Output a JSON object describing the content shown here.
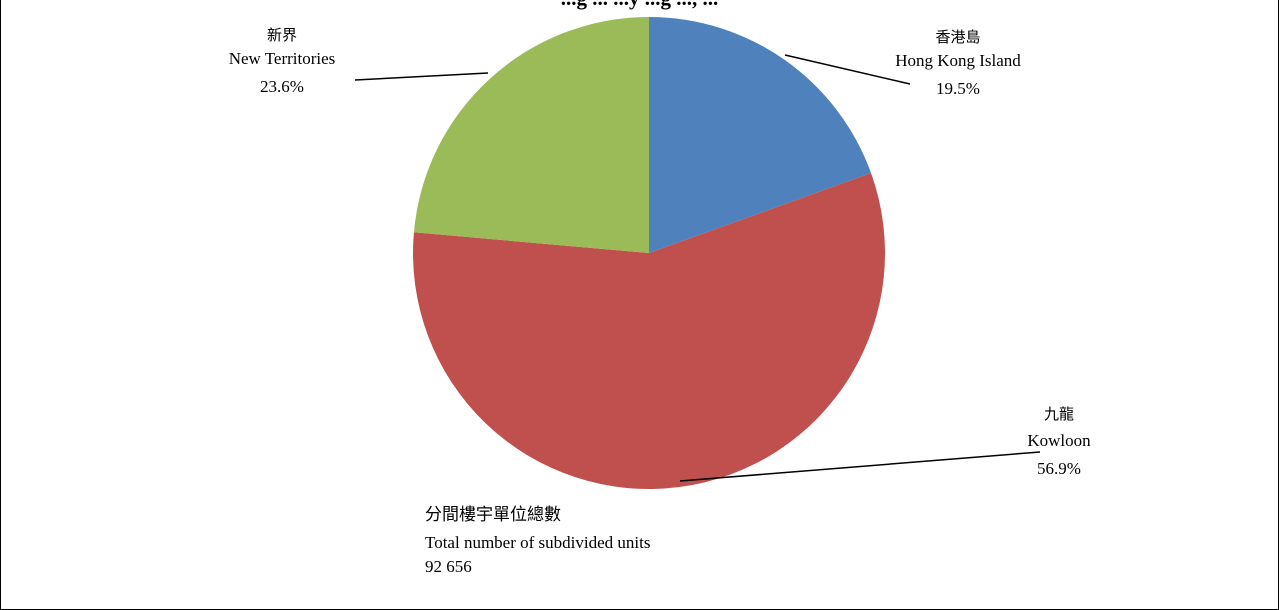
{
  "chart_data": {
    "type": "pie",
    "title": "...g ... ...y ...g ..., ...",
    "slices": [
      {
        "label_zh": "香港島",
        "label_en": "Hong Kong Island",
        "value": 19.5,
        "value_text": "19.5%",
        "color": "#4F81BD"
      },
      {
        "label_zh": "九龍",
        "label_en": "Kowloon",
        "value": 56.9,
        "value_text": "56.9%",
        "color": "#C0504D"
      },
      {
        "label_zh": "新界",
        "label_en": "New Territories",
        "value": 23.6,
        "value_text": "23.6%",
        "color": "#9BBB59"
      }
    ],
    "total": {
      "label_zh": "分間樓宇單位總數",
      "label_en": "Total number of subdivided units",
      "value": "92 656"
    }
  }
}
